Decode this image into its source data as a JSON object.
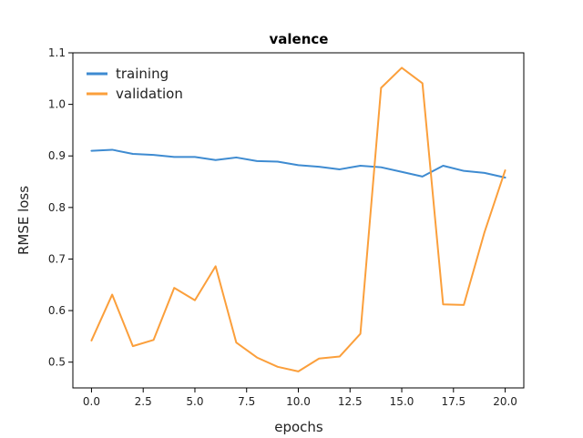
{
  "chart_data": {
    "type": "line",
    "title": "valence",
    "xlabel": "epochs",
    "ylabel": "RMSE loss",
    "xlim": [
      -0.9,
      20.9
    ],
    "ylim": [
      0.45,
      1.1
    ],
    "xticks": [
      "0.0",
      "2.5",
      "5.0",
      "7.5",
      "10.0",
      "12.5",
      "15.0",
      "17.5",
      "20.0"
    ],
    "yticks": [
      "0.5",
      "0.6",
      "0.7",
      "0.8",
      "0.9",
      "1.0",
      "1.1"
    ],
    "grid": false,
    "legend_position": "top-left",
    "x": [
      0,
      1,
      2,
      3,
      4,
      5,
      6,
      7,
      8,
      9,
      10,
      11,
      12,
      13,
      14,
      15,
      16,
      17,
      18,
      19,
      20
    ],
    "series": [
      {
        "name": "training",
        "color": "#3e8bd1",
        "values": [
          0.91,
          0.912,
          0.904,
          0.902,
          0.898,
          0.898,
          0.892,
          0.897,
          0.89,
          0.889,
          0.882,
          0.879,
          0.874,
          0.881,
          0.878,
          0.869,
          0.86,
          0.881,
          0.871,
          0.867,
          0.858
        ]
      },
      {
        "name": "validation",
        "color": "#fb9f3b",
        "values": [
          0.542,
          0.631,
          0.531,
          0.543,
          0.644,
          0.62,
          0.686,
          0.538,
          0.509,
          0.491,
          0.482,
          0.507,
          0.511,
          0.555,
          1.032,
          1.071,
          1.041,
          0.612,
          0.611,
          0.752,
          0.872
        ]
      }
    ]
  }
}
